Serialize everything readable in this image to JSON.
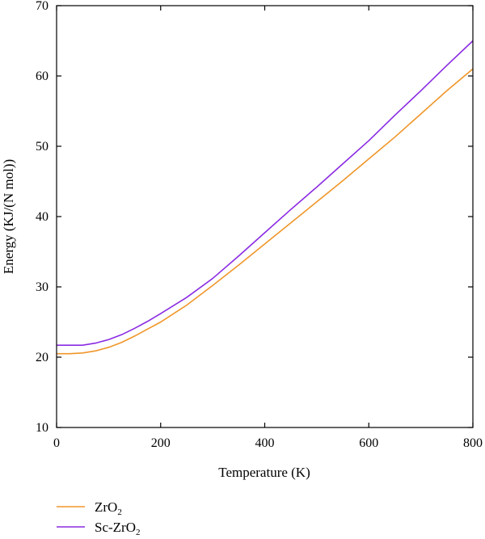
{
  "chart_data": {
    "type": "line",
    "title": "",
    "xlabel": "Temperature (K)",
    "ylabel": "Energy (KJ/(N mol))",
    "xlim": [
      0,
      800
    ],
    "ylim": [
      10,
      70
    ],
    "xticks": [
      0,
      200,
      400,
      600,
      800
    ],
    "yticks": [
      10,
      20,
      30,
      40,
      50,
      60,
      70
    ],
    "grid": false,
    "legend_position": "bottom-left-below-plot",
    "series": [
      {
        "name": "ZrO2",
        "name_base": "ZrO",
        "name_sub": "2",
        "color": "#f0962a",
        "x": [
          0,
          25,
          50,
          75,
          100,
          125,
          150,
          175,
          200,
          250,
          300,
          350,
          400,
          450,
          500,
          550,
          600,
          650,
          700,
          750,
          800
        ],
        "y": [
          20.5,
          20.5,
          20.6,
          20.9,
          21.4,
          22.1,
          23.0,
          24.0,
          25.0,
          27.4,
          30.2,
          33.1,
          36.1,
          39.1,
          42.1,
          45.1,
          48.2,
          51.3,
          54.6,
          57.9,
          61.0
        ]
      },
      {
        "name": "Sc-ZrO2",
        "name_base": "Sc-ZrO",
        "name_sub": "2",
        "color": "#8a2be2",
        "x": [
          0,
          25,
          50,
          75,
          100,
          125,
          150,
          175,
          200,
          250,
          300,
          350,
          400,
          450,
          500,
          550,
          600,
          650,
          700,
          750,
          800
        ],
        "y": [
          21.7,
          21.7,
          21.7,
          22.0,
          22.5,
          23.2,
          24.1,
          25.1,
          26.2,
          28.5,
          31.2,
          34.4,
          37.7,
          41.0,
          44.2,
          47.5,
          50.8,
          54.4,
          57.9,
          61.5,
          65.0
        ]
      }
    ]
  }
}
